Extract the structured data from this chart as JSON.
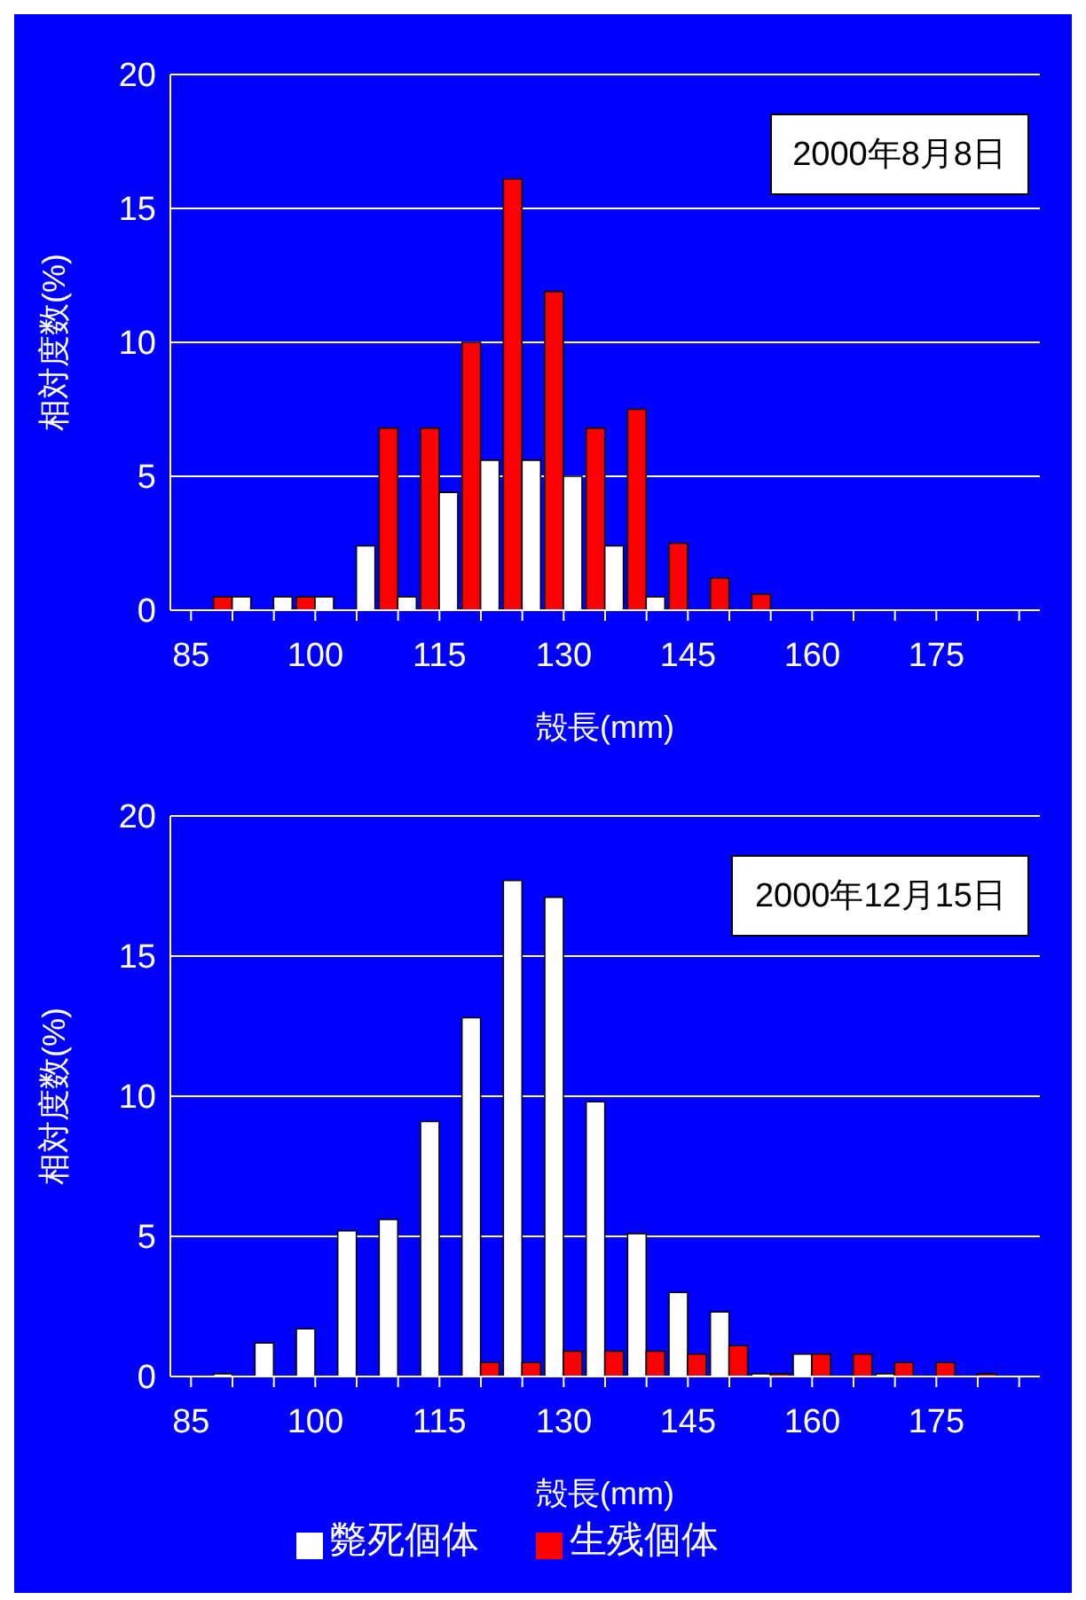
{
  "chart_data": [
    {
      "type": "bar",
      "categories": [
        "85",
        null,
        null,
        "100",
        null,
        null,
        "115",
        null,
        null,
        "130",
        null,
        null,
        "145",
        null,
        null,
        "160",
        null,
        null,
        "175",
        null,
        null
      ],
      "series": [
        {
          "color": "#ff0000",
          "values": [
            null,
            0.5,
            null,
            0.5,
            null,
            6.8,
            6.8,
            10.0,
            16.1,
            11.9,
            6.8,
            7.5,
            2.5,
            1.2,
            0.6,
            null,
            null,
            null,
            null,
            null,
            null
          ]
        },
        {
          "color": "#ffffff",
          "values": [
            null,
            0.5,
            0.5,
            0.5,
            2.4,
            0.5,
            4.4,
            5.6,
            5.6,
            5.0,
            2.4,
            0.5,
            null,
            null,
            null,
            null,
            null,
            null,
            null,
            null,
            null
          ]
        }
      ],
      "xlabel": "殻長(mm)",
      "ylabel": "相対度数(%)",
      "ylim": [
        0,
        20
      ],
      "yticks": [
        0,
        5,
        10,
        15,
        20
      ],
      "grid": "y",
      "annotations": [
        "2000年8月8日"
      ]
    },
    {
      "type": "bar",
      "categories": [
        "85",
        null,
        null,
        "100",
        null,
        null,
        "115",
        null,
        null,
        "130",
        null,
        null,
        "145",
        null,
        null,
        "160",
        null,
        null,
        "175",
        null,
        null
      ],
      "series": [
        {
          "name": "斃死個体",
          "color": "#ffffff",
          "values": [
            null,
            0.1,
            1.2,
            1.7,
            5.2,
            5.6,
            9.1,
            12.8,
            17.7,
            17.1,
            9.8,
            5.1,
            3.0,
            2.3,
            0.1,
            0.8,
            null,
            0.1,
            null,
            null,
            null
          ]
        },
        {
          "name": "生残個体",
          "color": "#ff0000",
          "values": [
            null,
            null,
            null,
            null,
            null,
            null,
            null,
            0.5,
            0.5,
            0.9,
            0.9,
            0.9,
            0.8,
            1.1,
            0.1,
            0.8,
            0.8,
            0.5,
            0.5,
            0.1,
            null
          ]
        }
      ],
      "xlabel": "殻長(mm)",
      "ylabel": "相対度数(%)",
      "ylim": [
        0,
        20
      ],
      "yticks": [
        0,
        5,
        10,
        15,
        20
      ],
      "grid": "y",
      "legend": "bottom",
      "annotations": [
        "2000年12月15日"
      ]
    }
  ]
}
